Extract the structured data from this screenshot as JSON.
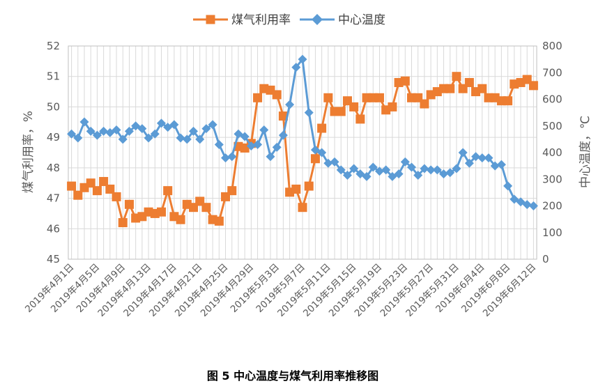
{
  "chart_data": {
    "type": "line",
    "caption": "图 5 中心温度与煤气利用率推移图",
    "ylabel_left": "煤气利用率，%",
    "ylabel_right": "中心温度，℃",
    "ylim_left": [
      45,
      52
    ],
    "yticks_left": [
      45,
      46,
      47,
      48,
      49,
      50,
      51,
      52
    ],
    "ylim_right": [
      0,
      800
    ],
    "yticks_right": [
      0,
      100,
      200,
      300,
      400,
      500,
      600,
      700,
      800
    ],
    "grid": true,
    "legend_position": "top-center",
    "x_tick_labels": [
      "2019年4月1日",
      "2019年4月5日",
      "2019年4月9日",
      "2019年4月13日",
      "2019年4月17日",
      "2019年4月21日",
      "2019年4月25日",
      "2019年4月29日",
      "2019年5月3日",
      "2019年5月7日",
      "2019年5月11日",
      "2019年5月15日",
      "2019年5月19日",
      "2019年5月23日",
      "2019年5月27日",
      "2019年5月31日",
      "2019年6月4日",
      "2019年6月8日",
      "2019年6月12日"
    ],
    "colors": {
      "series1": "#ED7D31",
      "series2": "#5B9BD5",
      "grid": "#D9D9D9",
      "axis": "#BFBFBF"
    },
    "series": [
      {
        "name": "煤气利用率",
        "axis": "left",
        "marker": "square",
        "values": [
          47.4,
          47.1,
          47.35,
          47.5,
          47.25,
          47.55,
          47.3,
          47.05,
          46.2,
          46.8,
          46.35,
          46.4,
          46.55,
          46.5,
          46.55,
          47.25,
          46.4,
          46.3,
          46.8,
          46.7,
          46.9,
          46.7,
          46.3,
          46.25,
          47.05,
          47.25,
          48.7,
          48.65,
          48.8,
          50.3,
          50.6,
          50.55,
          50.4,
          49.7,
          47.2,
          47.3,
          46.7,
          47.4,
          48.3,
          49.3,
          50.3,
          49.85,
          49.85,
          50.2,
          50.0,
          49.6,
          50.3,
          50.3,
          50.3,
          49.9,
          50.0,
          50.8,
          50.85,
          50.3,
          50.3,
          50.1,
          50.4,
          50.5,
          50.6,
          50.6,
          51.0,
          50.6,
          50.8,
          50.5,
          50.6,
          50.3,
          50.3,
          50.2,
          50.2,
          50.75,
          50.8,
          50.9,
          50.7
        ]
      },
      {
        "name": "中心温度",
        "axis": "right",
        "marker": "diamond",
        "values": [
          470,
          455,
          515,
          480,
          465,
          480,
          475,
          485,
          450,
          480,
          500,
          490,
          455,
          470,
          510,
          495,
          505,
          455,
          450,
          480,
          450,
          490,
          505,
          430,
          380,
          385,
          470,
          460,
          425,
          430,
          485,
          385,
          420,
          465,
          580,
          720,
          750,
          550,
          410,
          400,
          360,
          365,
          335,
          315,
          340,
          320,
          310,
          345,
          330,
          335,
          310,
          320,
          365,
          345,
          315,
          340,
          335,
          335,
          320,
          325,
          340,
          400,
          360,
          385,
          380,
          380,
          350,
          355,
          275,
          225,
          215,
          205,
          200
        ]
      }
    ]
  }
}
